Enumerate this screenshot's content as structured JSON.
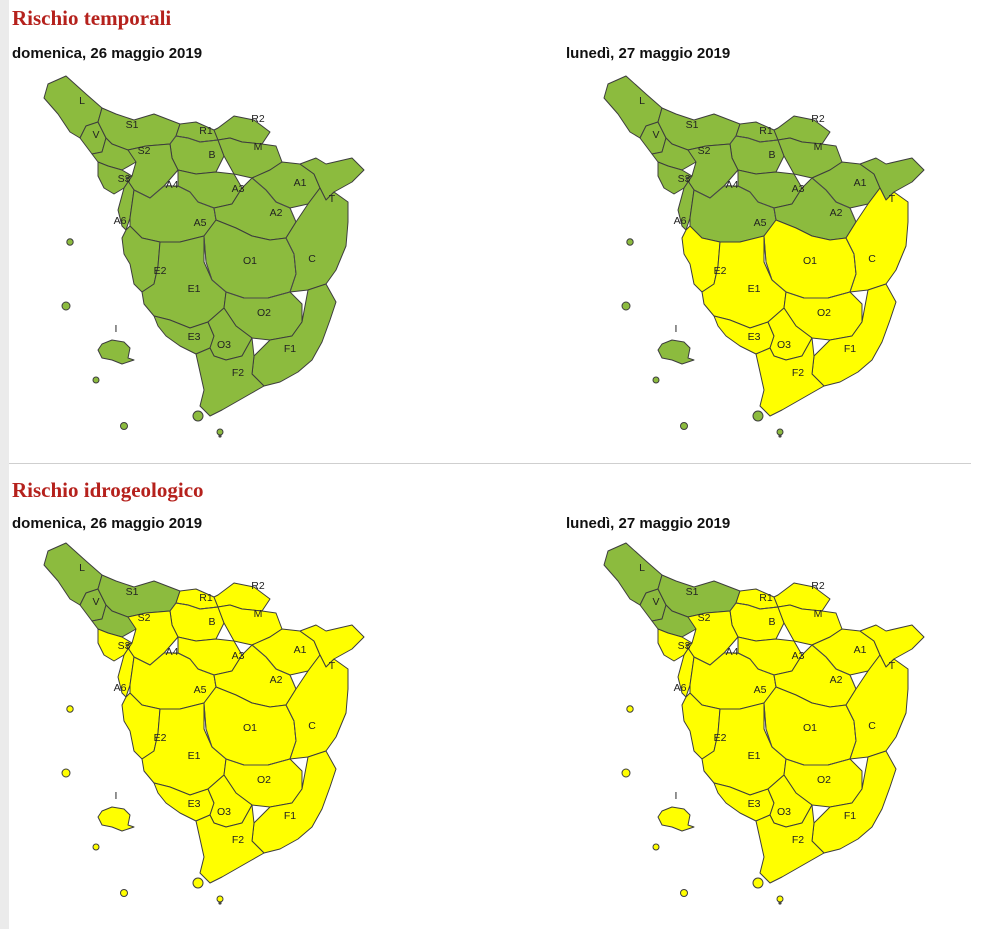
{
  "sections": [
    {
      "title": "Rischio temporali",
      "maps": [
        {
          "date": "domenica, 26 maggio 2019",
          "zones": {
            "L": "green",
            "V": "green",
            "S1": "green",
            "S2": "green",
            "S3": "green",
            "R1": "green",
            "R2": "green",
            "B": "green",
            "M": "green",
            "A4": "green",
            "A3": "green",
            "A1": "green",
            "T": "green",
            "A6": "green",
            "A5": "green",
            "A2": "green",
            "E2": "green",
            "O1": "green",
            "C": "green",
            "E1": "green",
            "I": "green",
            "O2": "green",
            "E3": "green",
            "O3": "green",
            "F1": "green",
            "F2": "green"
          }
        },
        {
          "date": "lunedì, 27 maggio 2019",
          "zones": {
            "L": "green",
            "V": "green",
            "S1": "green",
            "S2": "green",
            "S3": "green",
            "R1": "green",
            "R2": "green",
            "B": "green",
            "M": "green",
            "A4": "green",
            "A3": "green",
            "A1": "green",
            "T": "green",
            "A6": "green",
            "A5": "green",
            "A2": "green",
            "E2": "yellow",
            "O1": "yellow",
            "C": "yellow",
            "E1": "yellow",
            "I": "green",
            "O2": "yellow",
            "E3": "yellow",
            "O3": "yellow",
            "F1": "yellow",
            "F2": "yellow"
          }
        }
      ]
    },
    {
      "title": "Rischio idrogeologico",
      "maps": [
        {
          "date": "domenica, 26 maggio 2019",
          "zones": {
            "L": "green",
            "V": "green",
            "S1": "green",
            "S2": "green",
            "S3": "yellow",
            "R1": "yellow",
            "R2": "yellow",
            "B": "yellow",
            "M": "yellow",
            "A4": "yellow",
            "A3": "yellow",
            "A1": "yellow",
            "T": "yellow",
            "A6": "yellow",
            "A5": "yellow",
            "A2": "yellow",
            "E2": "yellow",
            "O1": "yellow",
            "C": "yellow",
            "E1": "yellow",
            "I": "yellow",
            "O2": "yellow",
            "E3": "yellow",
            "O3": "yellow",
            "F1": "yellow",
            "F2": "yellow"
          }
        },
        {
          "date": "lunedì, 27 maggio 2019",
          "zones": {
            "L": "green",
            "V": "green",
            "S1": "green",
            "S2": "green",
            "S3": "yellow",
            "R1": "yellow",
            "R2": "yellow",
            "B": "yellow",
            "M": "yellow",
            "A4": "yellow",
            "A3": "yellow",
            "A1": "yellow",
            "T": "yellow",
            "A6": "yellow",
            "A5": "yellow",
            "A2": "yellow",
            "E2": "yellow",
            "O1": "yellow",
            "C": "yellow",
            "E1": "yellow",
            "I": "yellow",
            "O2": "yellow",
            "E3": "yellow",
            "O3": "yellow",
            "F1": "yellow",
            "F2": "yellow"
          }
        }
      ]
    }
  ],
  "zone_labels": [
    "L",
    "V",
    "S1",
    "S2",
    "S3",
    "R1",
    "R2",
    "B",
    "M",
    "A4",
    "A3",
    "A1",
    "T",
    "A6",
    "A5",
    "A2",
    "E2",
    "O1",
    "C",
    "E1",
    "I",
    "O2",
    "E3",
    "O3",
    "F1",
    "F2"
  ],
  "colors": {
    "green": "#8cbb3e",
    "yellow": "#ffff00",
    "title": "#b5211c",
    "border": "#3d3d3d"
  }
}
